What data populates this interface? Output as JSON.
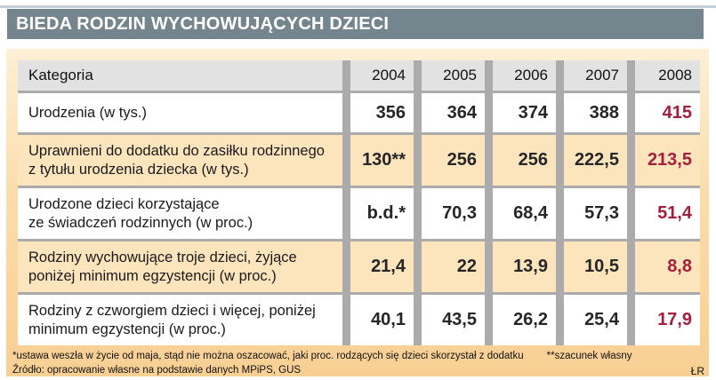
{
  "title": "BIEDA RODZIN WYCHOWUJĄCYCH DZIECI",
  "colors": {
    "title_bar": "#74858e",
    "top_line": "#c0d1dc",
    "panel_peach": "#fbdca9",
    "row_peach": "#fce4bd",
    "header_gray": "#e2e2e2",
    "grid_gray": "#ababab",
    "accent_red": "#a51e3c"
  },
  "chart_data": {
    "type": "table",
    "title": "BIEDA RODZIN WYCHOWUJĄCYCH DZIECI",
    "columns": [
      "Kategoria",
      "2004",
      "2005",
      "2006",
      "2007",
      "2008"
    ],
    "rows": [
      {
        "label_lines": [
          "Urodzenia (w tys.)",
          ""
        ],
        "values": [
          "356",
          "364",
          "374",
          "388",
          "415"
        ]
      },
      {
        "label_lines": [
          "Uprawnieni do dodatku do zasiłku rodzinnego",
          "z tytułu urodzenia dziecka (w tys.)"
        ],
        "values": [
          "130**",
          "256",
          "256",
          "222,5",
          "213,5"
        ]
      },
      {
        "label_lines": [
          "Urodzone dzieci korzystające",
          "ze świadczeń rodzinnych (w proc.)"
        ],
        "values": [
          "b.d.*",
          "70,3",
          "68,4",
          "57,3",
          "51,4"
        ]
      },
      {
        "label_lines": [
          "Rodziny wychowujące troje dzieci, żyjące",
          "poniżej minimum egzystencji (w proc.)"
        ],
        "values": [
          "21,4",
          "22",
          "13,9",
          "10,5",
          "8,8"
        ]
      },
      {
        "label_lines": [
          "Rodziny z czworgiem dzieci i więcej, poniżej",
          "minimum egzystencji (w proc.)"
        ],
        "values": [
          "40,1",
          "43,5",
          "26,2",
          "25,4",
          "17,9"
        ]
      }
    ],
    "highlight_column": "2008",
    "notes": {
      "note1": "*ustawa weszła w życie od maja, stąd nie można oszacować, jaki proc. rodzących się dzieci skorzystał z dodatku",
      "note2": "**szacunek własny",
      "source": "Źródło: opracowanie własne na podstawie danych MPiPS, GUS",
      "credit": "ŁR"
    }
  }
}
